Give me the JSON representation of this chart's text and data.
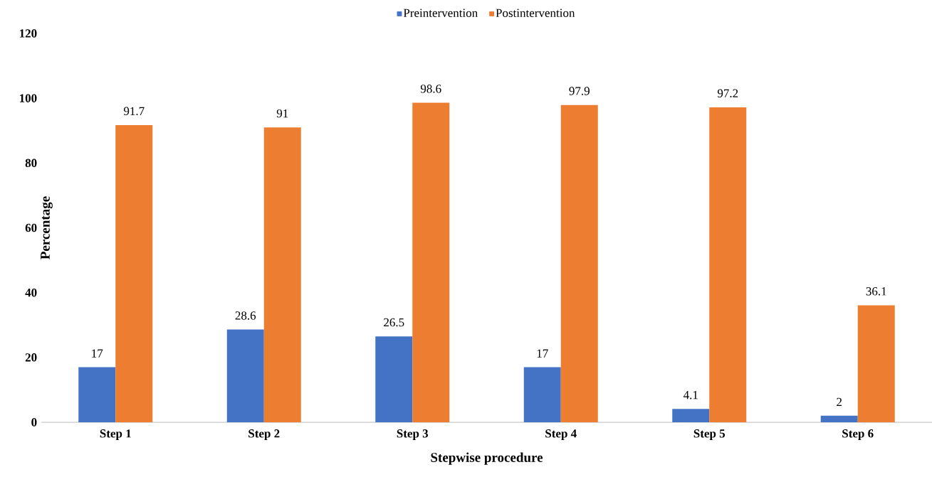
{
  "chart_data": {
    "type": "bar",
    "xlabel": "Stepwise procedure",
    "ylabel": "Percentage",
    "categories": [
      "Step 1",
      "Step 2",
      "Step 3",
      "Step 4",
      "Step 5",
      "Step 6"
    ],
    "series": [
      {
        "name": "Preintervention",
        "color": "#4472c4",
        "values": [
          17,
          28.6,
          26.5,
          17,
          4.1,
          2
        ]
      },
      {
        "name": "Postintervention",
        "color": "#ed7d31",
        "values": [
          91.7,
          91,
          98.6,
          97.9,
          97.2,
          36.1
        ]
      }
    ],
    "ylim": [
      0,
      120
    ],
    "yticks": [
      0,
      20,
      40,
      60,
      80,
      100,
      120
    ],
    "data_labels": true,
    "legend": "top",
    "grid": false
  }
}
